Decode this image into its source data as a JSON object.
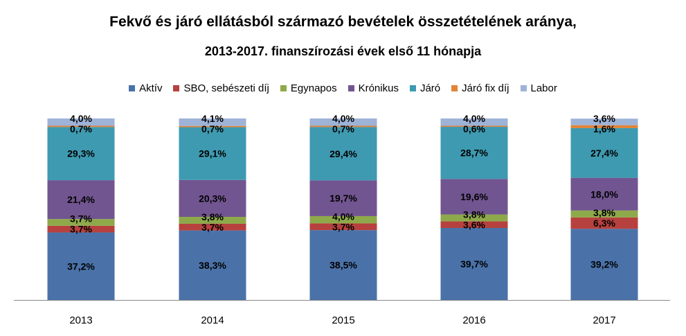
{
  "chart_data": {
    "type": "bar",
    "stacked": true,
    "percent_scale": true,
    "title": "Fekvő és járó ellátásból származó bevételek összetételének aránya,",
    "subtitle": "2013-2017. finanszírozási évek első 11 hónapja",
    "xlabel": "",
    "ylabel": "",
    "ylim": [
      0,
      100
    ],
    "legend_position": "top",
    "grid": false,
    "categories": [
      "2013",
      "2014",
      "2015",
      "2016",
      "2017"
    ],
    "series": [
      {
        "name": "Aktív",
        "color": "#4A72A9",
        "values": [
          37.2,
          38.3,
          38.5,
          39.7,
          39.2
        ],
        "labels": [
          "37,2%",
          "38,3%",
          "38,5%",
          "39,7%",
          "39,2%"
        ]
      },
      {
        "name": "SBO, sebészeti díj",
        "color": "#B7413E",
        "values": [
          3.7,
          3.7,
          3.7,
          3.6,
          6.3
        ],
        "labels": [
          "3,7%",
          "3,7%",
          "3,7%",
          "3,6%",
          "6,3%"
        ]
      },
      {
        "name": "Egynapos",
        "color": "#8EA94A",
        "values": [
          3.7,
          3.8,
          4.0,
          3.8,
          3.8
        ],
        "labels": [
          "3,7%",
          "3,8%",
          "4,0%",
          "3,8%",
          "3,8%"
        ]
      },
      {
        "name": "Krónikus",
        "color": "#715590",
        "values": [
          21.4,
          20.3,
          19.7,
          19.6,
          18.0
        ],
        "labels": [
          "21,4%",
          "20,3%",
          "19,7%",
          "19,6%",
          "18,0%"
        ]
      },
      {
        "name": "Járó",
        "color": "#3E9AB1",
        "values": [
          29.3,
          29.1,
          29.4,
          28.7,
          27.4
        ],
        "labels": [
          "29,3%",
          "29,1%",
          "29,4%",
          "28,7%",
          "27,4%"
        ]
      },
      {
        "name": "Járó fix díj",
        "color": "#E18437",
        "values": [
          0.7,
          0.7,
          0.7,
          0.6,
          1.6
        ],
        "labels": [
          "0,7%",
          "0,7%",
          "0,7%",
          "0,6%",
          "1,6%"
        ]
      },
      {
        "name": "Labor",
        "color": "#9EB3D8",
        "values": [
          4.0,
          4.1,
          4.0,
          4.0,
          3.6
        ],
        "labels": [
          "4,0%",
          "4,1%",
          "4,0%",
          "4,0%",
          "3,6%"
        ]
      }
    ]
  }
}
